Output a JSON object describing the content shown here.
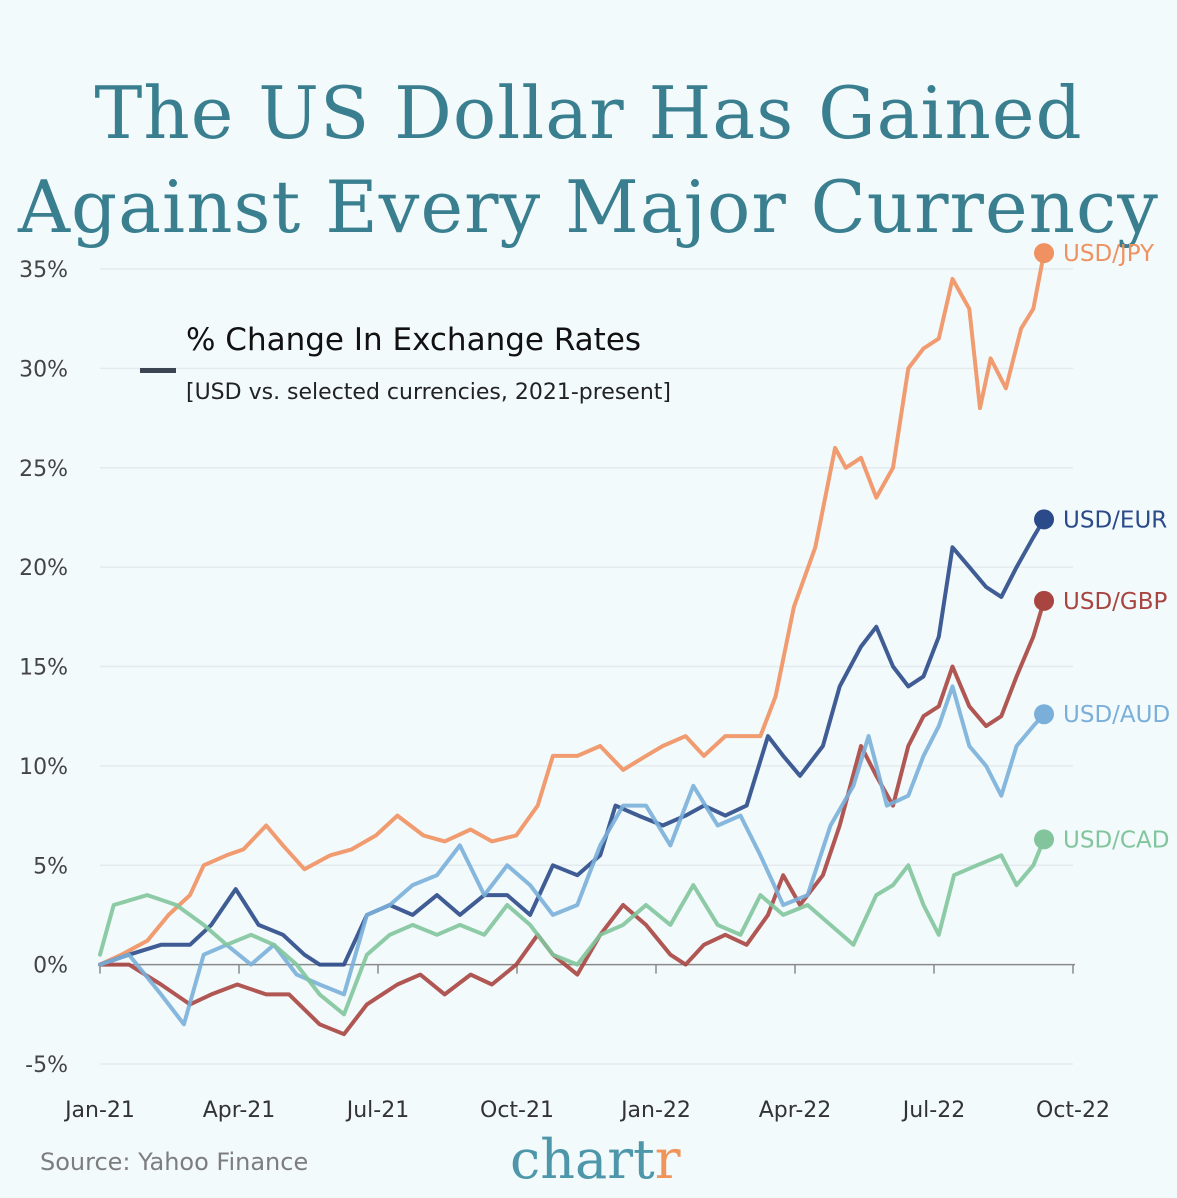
{
  "title_lines": [
    "The US Dollar Has Gained",
    "Against Every Major Currency"
  ],
  "legend": {
    "title": "% Change In Exchange Rates",
    "subtitle": "[USD vs. selected currencies, 2021-present]"
  },
  "source": "Source: Yahoo Finance",
  "brand": {
    "main": "chart",
    "accent": "r"
  },
  "chart_data": {
    "type": "line",
    "x_ticks": [
      "Jan-21",
      "Apr-21",
      "Jul-21",
      "Oct-21",
      "Jan-22",
      "Apr-22",
      "Jul-22",
      "Oct-22"
    ],
    "y_ticks": [
      "35%",
      "30%",
      "25%",
      "20%",
      "15%",
      "10%",
      "5%",
      "0%",
      "-5%"
    ],
    "ylim": [
      -5,
      35
    ],
    "xlim": [
      "2021-01-01",
      "2022-10-01"
    ],
    "grid": "horizontal",
    "series": [
      {
        "name": "USD/JPY",
        "color": "#ef9160",
        "end_value": 35.8,
        "points": [
          [
            "2021-01-01",
            0
          ],
          [
            "2021-01-15",
            0.5
          ],
          [
            "2021-02-01",
            1.2
          ],
          [
            "2021-02-15",
            2.5
          ],
          [
            "2021-03-01",
            3.5
          ],
          [
            "2021-03-10",
            5
          ],
          [
            "2021-03-25",
            5.5
          ],
          [
            "2021-04-05",
            5.8
          ],
          [
            "2021-04-20",
            7
          ],
          [
            "2021-05-01",
            6
          ],
          [
            "2021-05-15",
            4.8
          ],
          [
            "2021-06-01",
            5.5
          ],
          [
            "2021-06-15",
            5.8
          ],
          [
            "2021-07-01",
            6.5
          ],
          [
            "2021-07-15",
            7.5
          ],
          [
            "2021-08-01",
            6.5
          ],
          [
            "2021-08-15",
            6.2
          ],
          [
            "2021-09-01",
            6.8
          ],
          [
            "2021-09-15",
            6.2
          ],
          [
            "2021-10-01",
            6.5
          ],
          [
            "2021-10-15",
            8
          ],
          [
            "2021-10-25",
            10.5
          ],
          [
            "2021-11-10",
            10.5
          ],
          [
            "2021-11-25",
            11
          ],
          [
            "2021-12-10",
            9.8
          ],
          [
            "2021-12-25",
            10.5
          ],
          [
            "2022-01-05",
            11
          ],
          [
            "2022-01-20",
            11.5
          ],
          [
            "2022-02-01",
            10.5
          ],
          [
            "2022-02-15",
            11.5
          ],
          [
            "2022-03-01",
            11.5
          ],
          [
            "2022-03-10",
            11.5
          ],
          [
            "2022-03-20",
            13.5
          ],
          [
            "2022-04-01",
            18
          ],
          [
            "2022-04-15",
            21
          ],
          [
            "2022-04-28",
            26
          ],
          [
            "2022-05-05",
            25
          ],
          [
            "2022-05-15",
            25.5
          ],
          [
            "2022-05-25",
            23.5
          ],
          [
            "2022-06-05",
            25
          ],
          [
            "2022-06-15",
            30
          ],
          [
            "2022-06-25",
            31
          ],
          [
            "2022-07-05",
            31.5
          ],
          [
            "2022-07-14",
            34.5
          ],
          [
            "2022-07-25",
            33
          ],
          [
            "2022-08-01",
            28
          ],
          [
            "2022-08-08",
            30.5
          ],
          [
            "2022-08-18",
            29
          ],
          [
            "2022-08-28",
            32
          ],
          [
            "2022-09-05",
            33
          ],
          [
            "2022-09-12",
            35.8
          ]
        ]
      },
      {
        "name": "USD/EUR",
        "color": "#2b4a8a",
        "end_value": 22.4,
        "points": [
          [
            "2021-01-01",
            0
          ],
          [
            "2021-01-20",
            0.5
          ],
          [
            "2021-02-10",
            1
          ],
          [
            "2021-03-01",
            1
          ],
          [
            "2021-03-15",
            2
          ],
          [
            "2021-03-31",
            3.8
          ],
          [
            "2021-04-15",
            2
          ],
          [
            "2021-05-01",
            1.5
          ],
          [
            "2021-05-15",
            0.5
          ],
          [
            "2021-05-25",
            0
          ],
          [
            "2021-06-10",
            0
          ],
          [
            "2021-06-25",
            2.5
          ],
          [
            "2021-07-10",
            3
          ],
          [
            "2021-07-25",
            2.5
          ],
          [
            "2021-08-10",
            3.5
          ],
          [
            "2021-08-25",
            2.5
          ],
          [
            "2021-09-10",
            3.5
          ],
          [
            "2021-09-25",
            3.5
          ],
          [
            "2021-10-10",
            2.5
          ],
          [
            "2021-10-25",
            5
          ],
          [
            "2021-11-10",
            4.5
          ],
          [
            "2021-11-25",
            5.5
          ],
          [
            "2021-12-05",
            8
          ],
          [
            "2021-12-20",
            7.5
          ],
          [
            "2022-01-05",
            7
          ],
          [
            "2022-01-20",
            7.5
          ],
          [
            "2022-02-01",
            8
          ],
          [
            "2022-02-15",
            7.5
          ],
          [
            "2022-03-01",
            8
          ],
          [
            "2022-03-15",
            11.5
          ],
          [
            "2022-03-25",
            10.5
          ],
          [
            "2022-04-05",
            9.5
          ],
          [
            "2022-04-20",
            11
          ],
          [
            "2022-05-01",
            14
          ],
          [
            "2022-05-15",
            16
          ],
          [
            "2022-05-25",
            17
          ],
          [
            "2022-06-05",
            15
          ],
          [
            "2022-06-15",
            14
          ],
          [
            "2022-06-25",
            14.5
          ],
          [
            "2022-07-05",
            16.5
          ],
          [
            "2022-07-14",
            21
          ],
          [
            "2022-07-25",
            20
          ],
          [
            "2022-08-05",
            19
          ],
          [
            "2022-08-15",
            18.5
          ],
          [
            "2022-08-25",
            20
          ],
          [
            "2022-09-05",
            21.5
          ],
          [
            "2022-09-12",
            22.4
          ]
        ]
      },
      {
        "name": "USD/GBP",
        "color": "#a94540",
        "end_value": 18.3,
        "points": [
          [
            "2021-01-01",
            0
          ],
          [
            "2021-01-20",
            0
          ],
          [
            "2021-02-10",
            -1
          ],
          [
            "2021-03-01",
            -2
          ],
          [
            "2021-03-15",
            -1.5
          ],
          [
            "2021-04-01",
            -1
          ],
          [
            "2021-04-20",
            -1.5
          ],
          [
            "2021-05-05",
            -1.5
          ],
          [
            "2021-05-25",
            -3
          ],
          [
            "2021-06-10",
            -3.5
          ],
          [
            "2021-06-25",
            -2
          ],
          [
            "2021-07-15",
            -1
          ],
          [
            "2021-07-30",
            -0.5
          ],
          [
            "2021-08-15",
            -1.5
          ],
          [
            "2021-09-01",
            -0.5
          ],
          [
            "2021-09-15",
            -1
          ],
          [
            "2021-10-01",
            0
          ],
          [
            "2021-10-15",
            1.5
          ],
          [
            "2021-10-25",
            0.5
          ],
          [
            "2021-11-10",
            -0.5
          ],
          [
            "2021-11-25",
            1.5
          ],
          [
            "2021-12-10",
            3
          ],
          [
            "2021-12-25",
            2
          ],
          [
            "2022-01-10",
            0.5
          ],
          [
            "2022-01-20",
            0
          ],
          [
            "2022-02-01",
            1
          ],
          [
            "2022-02-15",
            1.5
          ],
          [
            "2022-03-01",
            1
          ],
          [
            "2022-03-15",
            2.5
          ],
          [
            "2022-03-25",
            4.5
          ],
          [
            "2022-04-05",
            3
          ],
          [
            "2022-04-20",
            4.5
          ],
          [
            "2022-05-01",
            7
          ],
          [
            "2022-05-15",
            11
          ],
          [
            "2022-05-25",
            9.5
          ],
          [
            "2022-06-05",
            8
          ],
          [
            "2022-06-15",
            11
          ],
          [
            "2022-06-25",
            12.5
          ],
          [
            "2022-07-05",
            13
          ],
          [
            "2022-07-14",
            15
          ],
          [
            "2022-07-25",
            13
          ],
          [
            "2022-08-05",
            12
          ],
          [
            "2022-08-15",
            12.5
          ],
          [
            "2022-08-25",
            14.5
          ],
          [
            "2022-09-05",
            16.5
          ],
          [
            "2022-09-12",
            18.3
          ]
        ]
      },
      {
        "name": "USD/AUD",
        "color": "#7aafd9",
        "end_value": 12.6,
        "points": [
          [
            "2021-01-01",
            0
          ],
          [
            "2021-01-20",
            0.5
          ],
          [
            "2021-02-10",
            -1.5
          ],
          [
            "2021-02-25",
            -3
          ],
          [
            "2021-03-10",
            0.5
          ],
          [
            "2021-03-25",
            1
          ],
          [
            "2021-04-10",
            0
          ],
          [
            "2021-04-25",
            1
          ],
          [
            "2021-05-10",
            -0.5
          ],
          [
            "2021-05-25",
            -1
          ],
          [
            "2021-06-10",
            -1.5
          ],
          [
            "2021-06-25",
            2.5
          ],
          [
            "2021-07-10",
            3
          ],
          [
            "2021-07-25",
            4
          ],
          [
            "2021-08-10",
            4.5
          ],
          [
            "2021-08-25",
            6
          ],
          [
            "2021-09-10",
            3.5
          ],
          [
            "2021-09-25",
            5
          ],
          [
            "2021-10-10",
            4
          ],
          [
            "2021-10-25",
            2.5
          ],
          [
            "2021-11-10",
            3
          ],
          [
            "2021-11-25",
            6
          ],
          [
            "2021-12-10",
            8
          ],
          [
            "2021-12-25",
            8
          ],
          [
            "2022-01-10",
            6
          ],
          [
            "2022-01-25",
            9
          ],
          [
            "2022-02-10",
            7
          ],
          [
            "2022-02-25",
            7.5
          ],
          [
            "2022-03-10",
            5.5
          ],
          [
            "2022-03-25",
            3
          ],
          [
            "2022-04-10",
            3.5
          ],
          [
            "2022-04-25",
            7
          ],
          [
            "2022-05-10",
            9
          ],
          [
            "2022-05-20",
            11.5
          ],
          [
            "2022-06-01",
            8
          ],
          [
            "2022-06-15",
            8.5
          ],
          [
            "2022-06-25",
            10.5
          ],
          [
            "2022-07-05",
            12
          ],
          [
            "2022-07-14",
            14
          ],
          [
            "2022-07-25",
            11
          ],
          [
            "2022-08-05",
            10
          ],
          [
            "2022-08-15",
            8.5
          ],
          [
            "2022-08-25",
            11
          ],
          [
            "2022-09-05",
            12
          ],
          [
            "2022-09-12",
            12.6
          ]
        ]
      },
      {
        "name": "USD/CAD",
        "color": "#82c59c",
        "end_value": 6.3,
        "points": [
          [
            "2021-01-01",
            0.5
          ],
          [
            "2021-01-10",
            3
          ],
          [
            "2021-02-01",
            3.5
          ],
          [
            "2021-02-20",
            3
          ],
          [
            "2021-03-10",
            2
          ],
          [
            "2021-03-25",
            1
          ],
          [
            "2021-04-10",
            1.5
          ],
          [
            "2021-04-25",
            1
          ],
          [
            "2021-05-10",
            0
          ],
          [
            "2021-05-25",
            -1.5
          ],
          [
            "2021-06-10",
            -2.5
          ],
          [
            "2021-06-25",
            0.5
          ],
          [
            "2021-07-10",
            1.5
          ],
          [
            "2021-07-25",
            2
          ],
          [
            "2021-08-10",
            1.5
          ],
          [
            "2021-08-25",
            2
          ],
          [
            "2021-09-10",
            1.5
          ],
          [
            "2021-09-25",
            3
          ],
          [
            "2021-10-10",
            2
          ],
          [
            "2021-10-25",
            0.5
          ],
          [
            "2021-11-10",
            0
          ],
          [
            "2021-11-25",
            1.5
          ],
          [
            "2021-12-10",
            2
          ],
          [
            "2021-12-25",
            3
          ],
          [
            "2022-01-10",
            2
          ],
          [
            "2022-01-25",
            4
          ],
          [
            "2022-02-10",
            2
          ],
          [
            "2022-02-25",
            1.5
          ],
          [
            "2022-03-10",
            3.5
          ],
          [
            "2022-03-25",
            2.5
          ],
          [
            "2022-04-10",
            3
          ],
          [
            "2022-04-25",
            2
          ],
          [
            "2022-05-10",
            1
          ],
          [
            "2022-05-25",
            3.5
          ],
          [
            "2022-06-05",
            4
          ],
          [
            "2022-06-15",
            5
          ],
          [
            "2022-06-25",
            3
          ],
          [
            "2022-07-05",
            1.5
          ],
          [
            "2022-07-15",
            4.5
          ],
          [
            "2022-07-30",
            5
          ],
          [
            "2022-08-15",
            5.5
          ],
          [
            "2022-08-25",
            4
          ],
          [
            "2022-09-05",
            5
          ],
          [
            "2022-09-12",
            6.3
          ]
        ]
      }
    ]
  }
}
